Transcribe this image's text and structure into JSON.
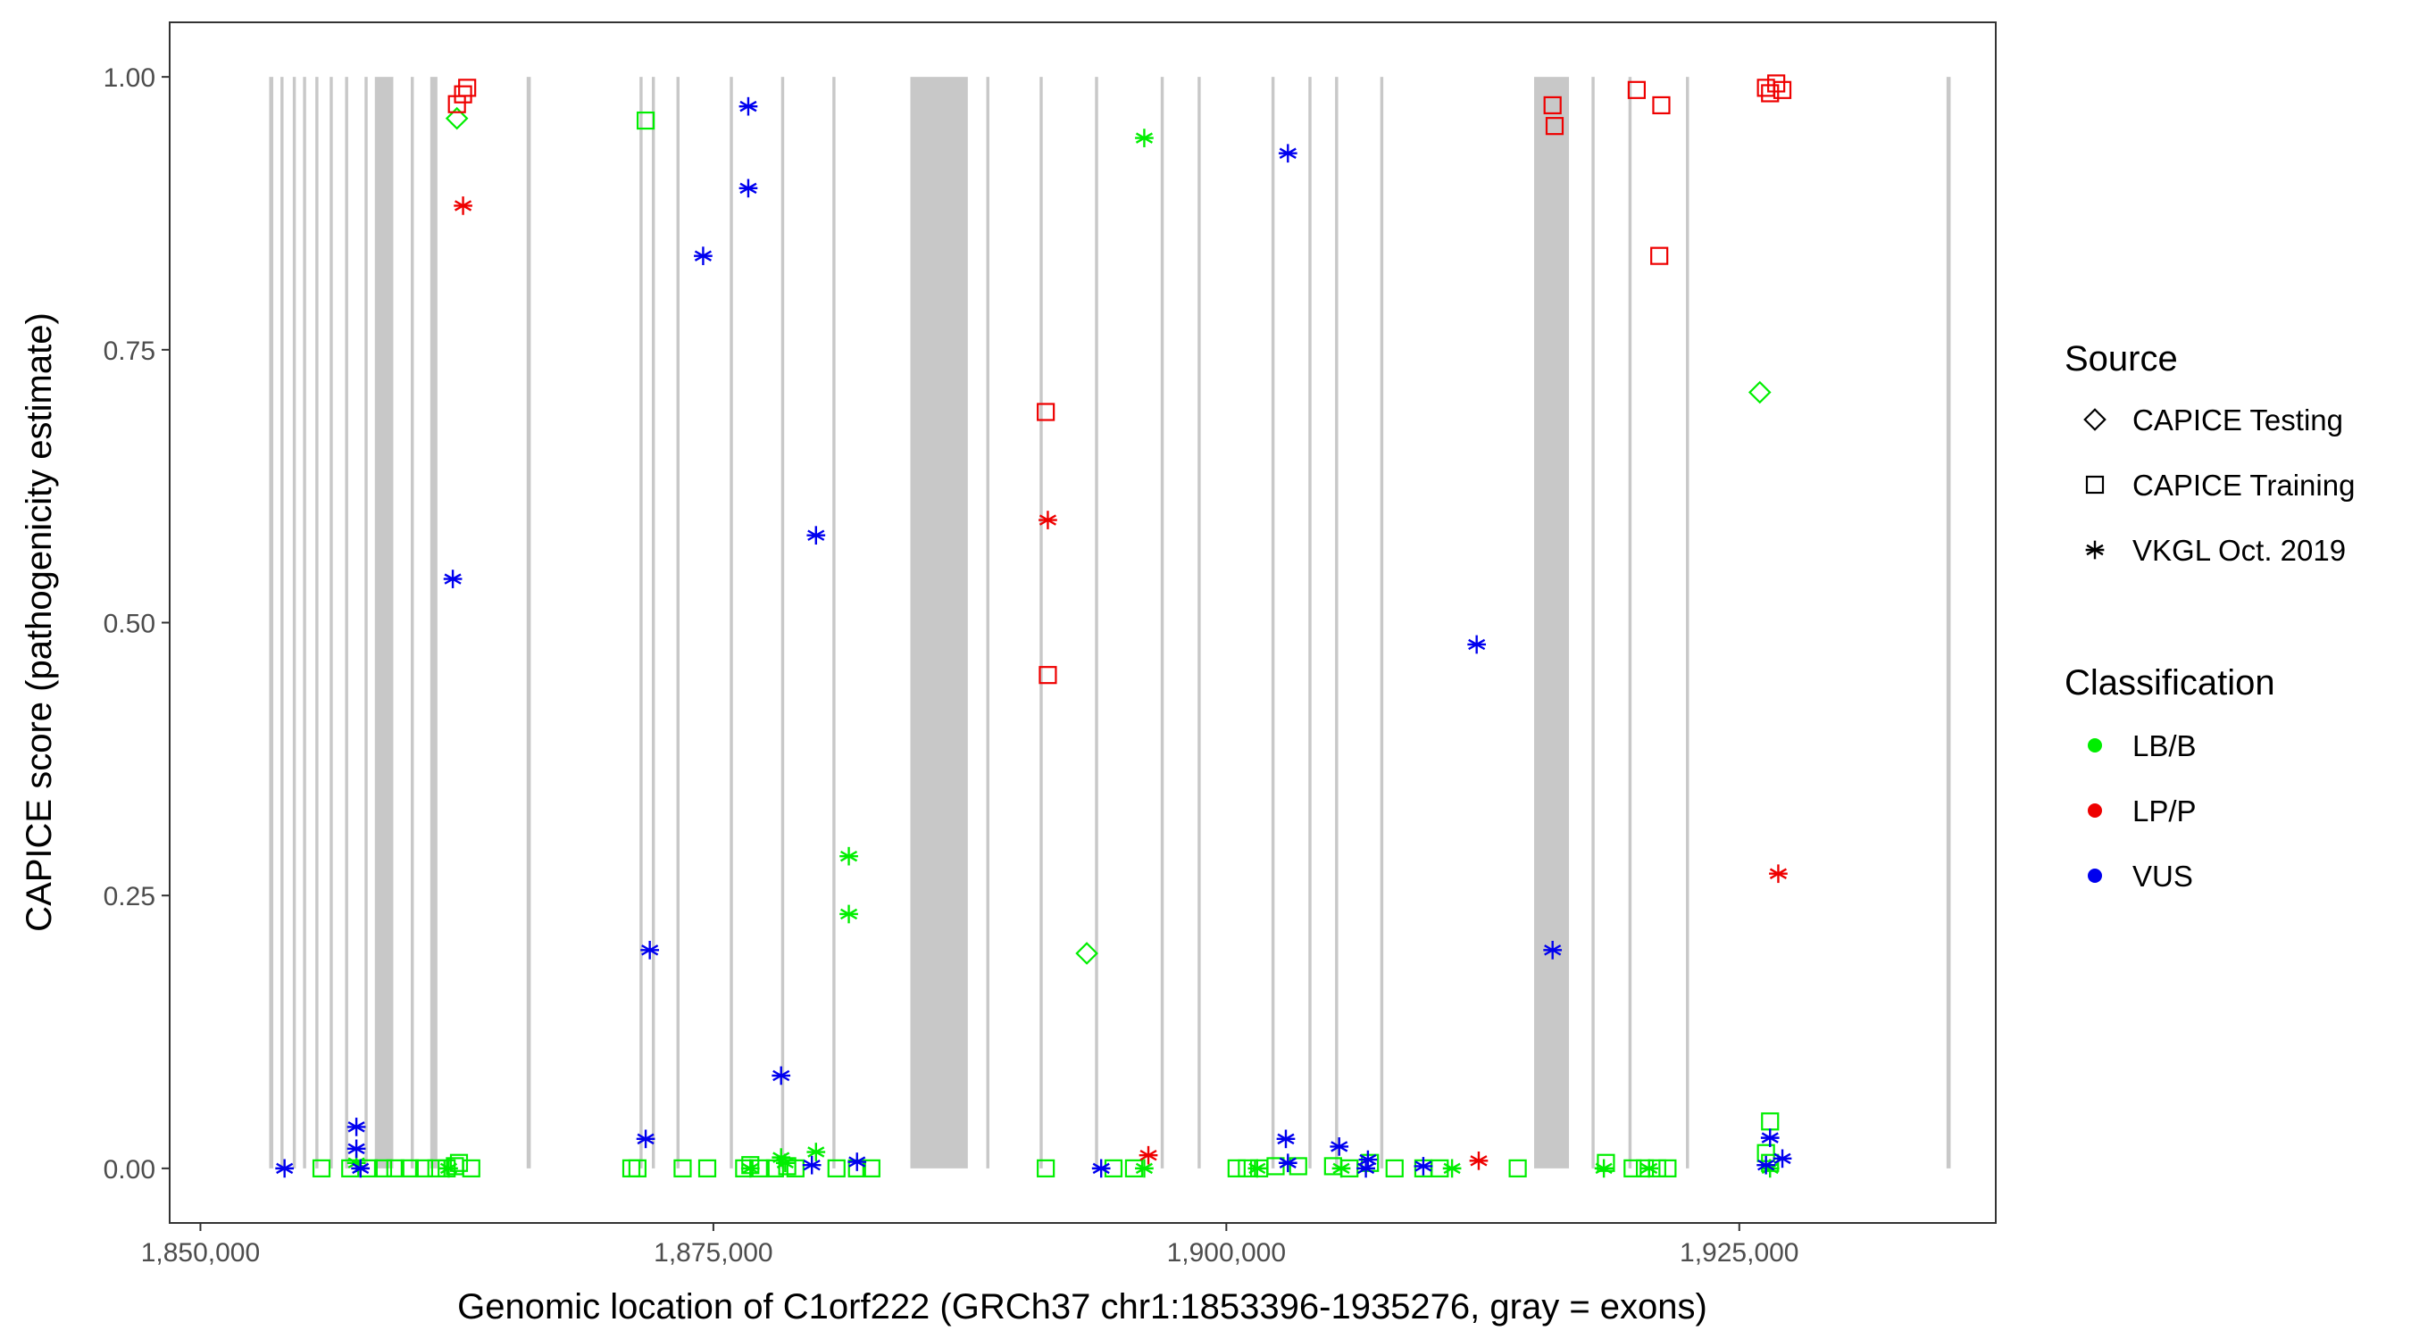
{
  "chart_data": {
    "type": "scatter",
    "title": "",
    "xlabel": "Genomic location of C1orf222 (GRCh37 chr1:1853396-1935276, gray = exons)",
    "ylabel": "CAPICE score (pathogenicity estimate)",
    "xlim": [
      1848500,
      1937500
    ],
    "ylim": [
      -0.05,
      1.05
    ],
    "x_ticks": [
      1850000,
      1875000,
      1900000,
      1925000
    ],
    "x_tick_labels": [
      "1,850,000",
      "1,875,000",
      "1,900,000",
      "1,925,000"
    ],
    "y_ticks": [
      0,
      0.25,
      0.5,
      0.75,
      1.0
    ],
    "y_tick_labels": [
      "0.00",
      "0.25",
      "0.50",
      "0.75",
      "1.00"
    ],
    "grid": false,
    "exon_color": "#c8c8c8",
    "exons": [
      [
        1853350,
        1853550
      ],
      [
        1853900,
        1854050
      ],
      [
        1854500,
        1854650
      ],
      [
        1855000,
        1855150
      ],
      [
        1855600,
        1855750
      ],
      [
        1856300,
        1856450
      ],
      [
        1857050,
        1857200
      ],
      [
        1858000,
        1858150
      ],
      [
        1858500,
        1859400
      ],
      [
        1860250,
        1860400
      ],
      [
        1861200,
        1861550
      ],
      [
        1865900,
        1866100
      ],
      [
        1871400,
        1871550
      ],
      [
        1872000,
        1872150
      ],
      [
        1873200,
        1873350
      ],
      [
        1875800,
        1875950
      ],
      [
        1878300,
        1878450
      ],
      [
        1880800,
        1880950
      ],
      [
        1884600,
        1887400
      ],
      [
        1888300,
        1888450
      ],
      [
        1890900,
        1891050
      ],
      [
        1893600,
        1893750
      ],
      [
        1896800,
        1896950
      ],
      [
        1898600,
        1898750
      ],
      [
        1902200,
        1902350
      ],
      [
        1904000,
        1904150
      ],
      [
        1905300,
        1905450
      ],
      [
        1907500,
        1907650
      ],
      [
        1915000,
        1916700
      ],
      [
        1917800,
        1917950
      ],
      [
        1919600,
        1919750
      ],
      [
        1922400,
        1922550
      ],
      [
        1935100,
        1935300
      ]
    ],
    "colors": {
      "LB/B": "#00ee00",
      "LP/P": "#ee0000",
      "VUS": "#0000ee"
    },
    "legend": {
      "position": "right",
      "source_title": "Source",
      "source_items": [
        {
          "label": "CAPICE Testing",
          "shape": "diamond"
        },
        {
          "label": "CAPICE Training",
          "shape": "square"
        },
        {
          "label": "VKGL Oct. 2019",
          "shape": "asterisk"
        }
      ],
      "class_title": "Classification",
      "class_items": [
        {
          "label": "LB/B",
          "color": "#00ee00"
        },
        {
          "label": "LP/P",
          "color": "#ee0000"
        },
        {
          "label": "VUS",
          "color": "#0000ee"
        }
      ]
    },
    "series": [
      {
        "source": "CAPICE Testing",
        "shape": "diamond",
        "points": [
          [
            1862500,
            0.962,
            "LB/B"
          ],
          [
            1893200,
            0.197,
            "LB/B"
          ],
          [
            1926000,
            0.711,
            "LB/B"
          ]
        ]
      },
      {
        "source": "CAPICE Training",
        "shape": "square",
        "points": [
          [
            1862500,
            0.975,
            "LP/P"
          ],
          [
            1862800,
            0.984,
            "LP/P"
          ],
          [
            1863000,
            0.99,
            "LP/P"
          ],
          [
            1871700,
            0.96,
            "LB/B"
          ],
          [
            1891200,
            0.693,
            "LP/P"
          ],
          [
            1891300,
            0.452,
            "LP/P"
          ],
          [
            1915900,
            0.974,
            "LP/P"
          ],
          [
            1916000,
            0.955,
            "LP/P"
          ],
          [
            1920000,
            0.988,
            "LP/P"
          ],
          [
            1921200,
            0.974,
            "LP/P"
          ],
          [
            1921100,
            0.836,
            "LP/P"
          ],
          [
            1926300,
            0.99,
            "LP/P"
          ],
          [
            1926500,
            0.985,
            "LP/P"
          ],
          [
            1926800,
            0.994,
            "LP/P"
          ],
          [
            1927100,
            0.988,
            "LP/P"
          ],
          [
            1926500,
            0.043,
            "LB/B"
          ],
          [
            1926300,
            0.014,
            "LB/B"
          ],
          [
            1926500,
            0.005,
            "LB/B"
          ],
          [
            1855900,
            0.0,
            "LB/B"
          ],
          [
            1857300,
            0.0,
            "LB/B"
          ],
          [
            1858200,
            0.0,
            "LB/B"
          ],
          [
            1858900,
            0.0,
            "LB/B"
          ],
          [
            1859500,
            0.0,
            "LB/B"
          ],
          [
            1860200,
            0.0,
            "LB/B"
          ],
          [
            1860900,
            0.0,
            "LB/B"
          ],
          [
            1861500,
            0.0,
            "LB/B"
          ],
          [
            1862000,
            0.0,
            "LB/B"
          ],
          [
            1862400,
            0.002,
            "LB/B"
          ],
          [
            1862600,
            0.005,
            "LB/B"
          ],
          [
            1863200,
            0.0,
            "LB/B"
          ],
          [
            1871000,
            0.0,
            "LB/B"
          ],
          [
            1871300,
            0.0,
            "LB/B"
          ],
          [
            1873500,
            0.0,
            "LB/B"
          ],
          [
            1874700,
            0.0,
            "LB/B"
          ],
          [
            1876500,
            0.0,
            "LB/B"
          ],
          [
            1876800,
            0.003,
            "LB/B"
          ],
          [
            1877300,
            0.0,
            "LB/B"
          ],
          [
            1878000,
            0.0,
            "LB/B"
          ],
          [
            1878600,
            0.002,
            "LB/B"
          ],
          [
            1879000,
            0.0,
            "LB/B"
          ],
          [
            1881000,
            0.0,
            "LB/B"
          ],
          [
            1882000,
            0.0,
            "LB/B"
          ],
          [
            1882700,
            0.0,
            "LB/B"
          ],
          [
            1891200,
            0.0,
            "LB/B"
          ],
          [
            1894500,
            0.0,
            "LB/B"
          ],
          [
            1895500,
            0.0,
            "LB/B"
          ],
          [
            1900500,
            0.0,
            "LB/B"
          ],
          [
            1901000,
            0.0,
            "LB/B"
          ],
          [
            1901600,
            0.0,
            "LB/B"
          ],
          [
            1902400,
            0.002,
            "LB/B"
          ],
          [
            1903500,
            0.002,
            "LB/B"
          ],
          [
            1905200,
            0.002,
            "LB/B"
          ],
          [
            1906000,
            0.0,
            "LB/B"
          ],
          [
            1907000,
            0.005,
            "LB/B"
          ],
          [
            1908200,
            0.0,
            "LB/B"
          ],
          [
            1909600,
            0.0,
            "LB/B"
          ],
          [
            1910400,
            0.0,
            "LB/B"
          ],
          [
            1914200,
            0.0,
            "LB/B"
          ],
          [
            1918500,
            0.005,
            "LB/B"
          ],
          [
            1919800,
            0.0,
            "LB/B"
          ],
          [
            1920400,
            0.0,
            "LB/B"
          ],
          [
            1921000,
            0.0,
            "LB/B"
          ],
          [
            1921500,
            0.0,
            "LB/B"
          ]
        ]
      },
      {
        "source": "VKGL Oct. 2019",
        "shape": "asterisk",
        "points": [
          [
            1862800,
            0.882,
            "LP/P"
          ],
          [
            1891300,
            0.594,
            "LP/P"
          ],
          [
            1896200,
            0.012,
            "LP/P"
          ],
          [
            1912300,
            0.007,
            "LP/P"
          ],
          [
            1926900,
            0.27,
            "LP/P"
          ],
          [
            1896000,
            0.944,
            "LB/B"
          ],
          [
            1881600,
            0.286,
            "LB/B"
          ],
          [
            1881600,
            0.233,
            "LB/B"
          ],
          [
            1880000,
            0.015,
            "LB/B"
          ],
          [
            1878300,
            0.01,
            "LB/B"
          ],
          [
            1878500,
            0.005,
            "LB/B"
          ],
          [
            1876800,
            0.0,
            "LB/B"
          ],
          [
            1862100,
            0.0,
            "LB/B"
          ],
          [
            1857600,
            0.005,
            "LB/B"
          ],
          [
            1896000,
            0.0,
            "LB/B"
          ],
          [
            1901500,
            0.0,
            "LB/B"
          ],
          [
            1905600,
            0.0,
            "LB/B"
          ],
          [
            1911000,
            0.0,
            "LB/B"
          ],
          [
            1918400,
            0.0,
            "LB/B"
          ],
          [
            1920600,
            0.0,
            "LB/B"
          ],
          [
            1926500,
            0.0,
            "LB/B"
          ],
          [
            1854100,
            0.0,
            "VUS"
          ],
          [
            1857600,
            0.038,
            "VUS"
          ],
          [
            1857600,
            0.018,
            "VUS"
          ],
          [
            1857800,
            0.0,
            "VUS"
          ],
          [
            1862300,
            0.54,
            "VUS"
          ],
          [
            1871900,
            0.2,
            "VUS"
          ],
          [
            1871700,
            0.027,
            "VUS"
          ],
          [
            1874500,
            0.836,
            "VUS"
          ],
          [
            1876700,
            0.973,
            "VUS"
          ],
          [
            1876700,
            0.898,
            "VUS"
          ],
          [
            1878300,
            0.085,
            "VUS"
          ],
          [
            1880000,
            0.58,
            "VUS"
          ],
          [
            1879800,
            0.003,
            "VUS"
          ],
          [
            1882000,
            0.006,
            "VUS"
          ],
          [
            1893900,
            0.0,
            "VUS"
          ],
          [
            1903000,
            0.93,
            "VUS"
          ],
          [
            1902900,
            0.027,
            "VUS"
          ],
          [
            1903000,
            0.005,
            "VUS"
          ],
          [
            1905500,
            0.02,
            "VUS"
          ],
          [
            1906900,
            0.008,
            "VUS"
          ],
          [
            1906800,
            0.0,
            "VUS"
          ],
          [
            1909600,
            0.002,
            "VUS"
          ],
          [
            1912200,
            0.48,
            "VUS"
          ],
          [
            1915900,
            0.2,
            "VUS"
          ],
          [
            1926500,
            0.028,
            "VUS"
          ],
          [
            1926300,
            0.003,
            "VUS"
          ],
          [
            1927100,
            0.009,
            "VUS"
          ]
        ]
      }
    ]
  }
}
